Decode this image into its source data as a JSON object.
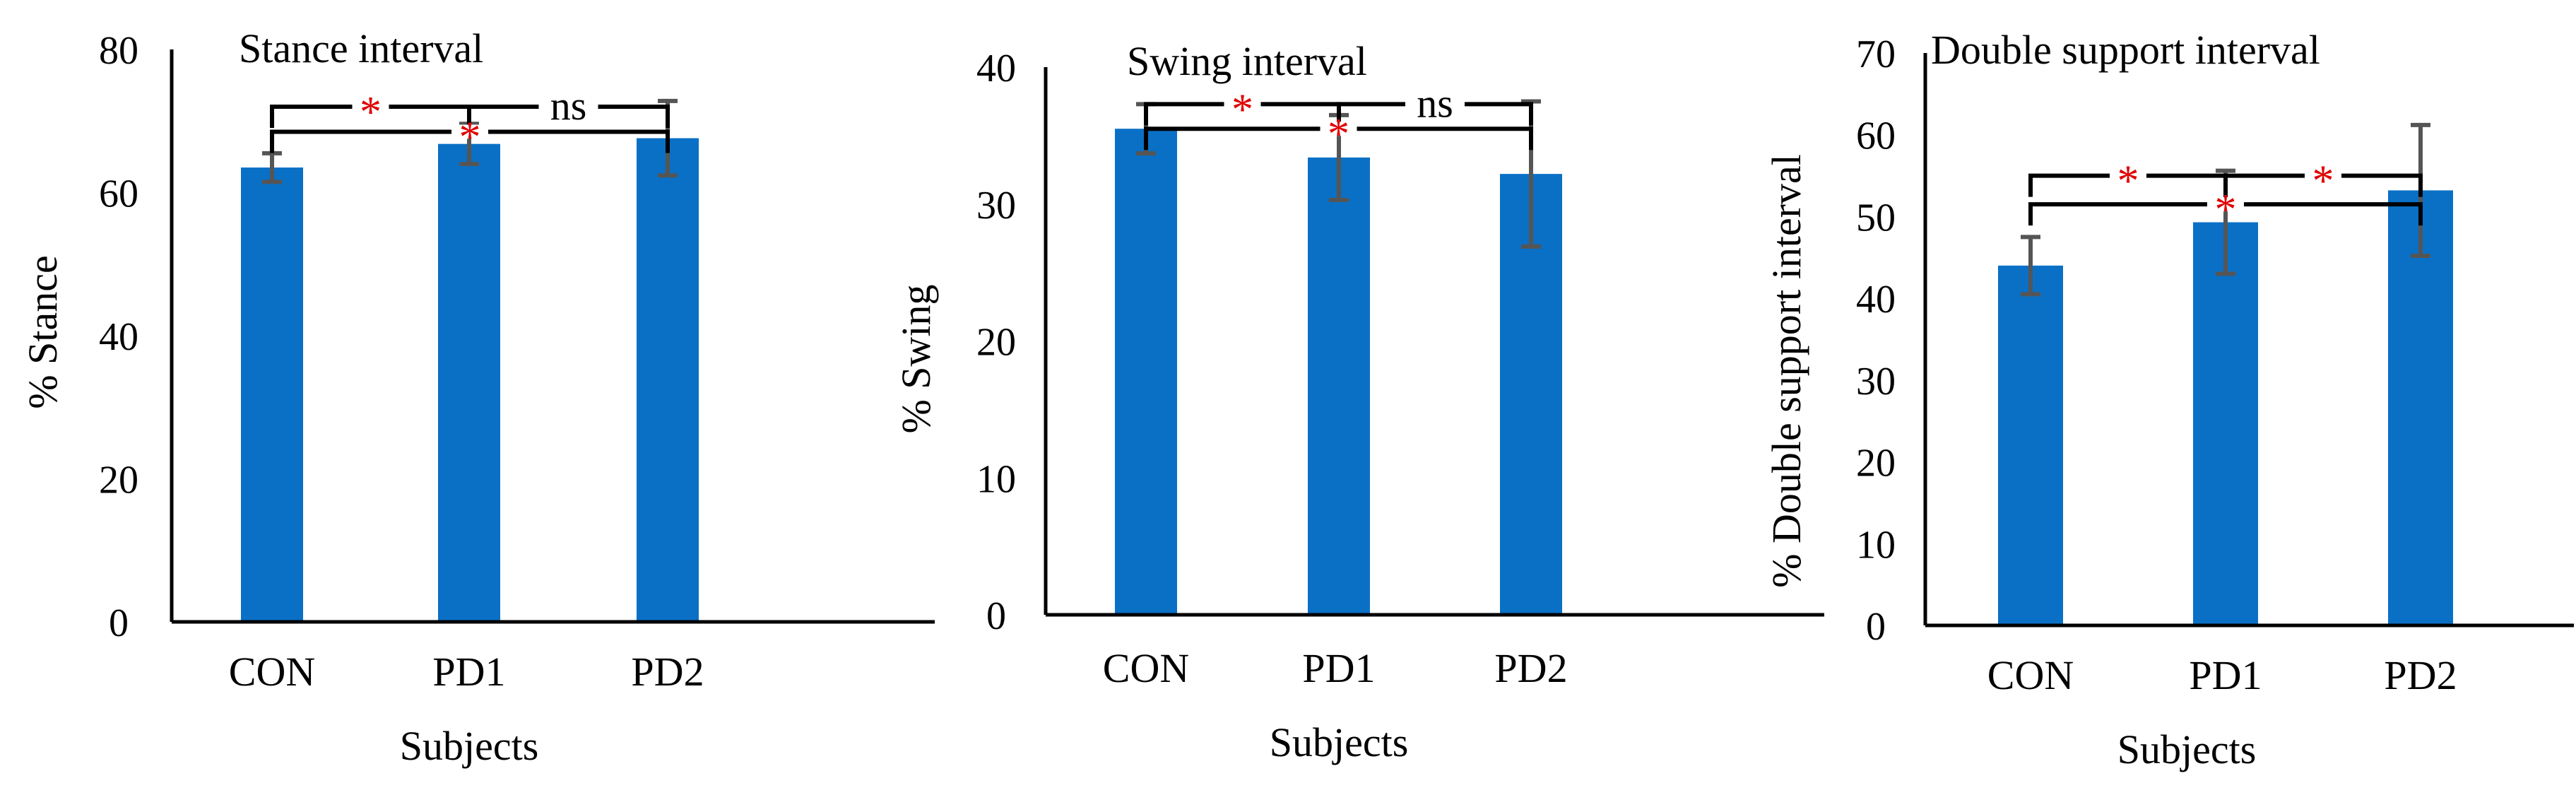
{
  "chart_data": [
    {
      "type": "bar",
      "title": "Stance interval",
      "xlabel": "Subjects",
      "ylabel": "% Stance",
      "categories": [
        "CON",
        "PD1",
        "PD2"
      ],
      "values": [
        63.5,
        66.8,
        67.6
      ],
      "errors": [
        2.0,
        2.8,
        5.2
      ],
      "ylim": [
        0,
        80
      ],
      "ticks": [
        0,
        20,
        40,
        60,
        80
      ],
      "annotations": [
        {
          "label": "*",
          "from": 0,
          "to": 1,
          "level": 72
        },
        {
          "label": "ns",
          "from": 1,
          "to": 2,
          "level": 72
        },
        {
          "label": "*",
          "from": 0,
          "to": 2,
          "level": 68.5
        }
      ]
    },
    {
      "type": "bar",
      "title": "Swing interval",
      "xlabel": "Subjects",
      "ylabel": "% Swing",
      "categories": [
        "CON",
        "PD1",
        "PD2"
      ],
      "values": [
        35.5,
        33.4,
        32.2
      ],
      "errors": [
        1.8,
        3.1,
        5.3
      ],
      "ylim": [
        0,
        40
      ],
      "ticks": [
        0,
        10,
        20,
        30,
        40
      ],
      "annotations": [
        {
          "label": "*",
          "from": 0,
          "to": 1,
          "level": 37.3
        },
        {
          "label": "ns",
          "from": 1,
          "to": 2,
          "level": 37.3
        },
        {
          "label": "*",
          "from": 0,
          "to": 2,
          "level": 35.5
        }
      ]
    },
    {
      "type": "bar",
      "title": "Double support interval",
      "xlabel": "Subjects",
      "ylabel": "% Double support interval",
      "categories": [
        "CON",
        "PD1",
        "PD2"
      ],
      "values": [
        44.0,
        49.3,
        53.2
      ],
      "errors": [
        3.5,
        6.3,
        8.0
      ],
      "ylim": [
        0,
        70
      ],
      "ticks": [
        0,
        10,
        20,
        30,
        40,
        50,
        60,
        70
      ],
      "annotations": [
        {
          "label": "*",
          "from": 0,
          "to": 1,
          "level": 55
        },
        {
          "label": "*",
          "from": 1,
          "to": 2,
          "level": 55
        },
        {
          "label": "*",
          "from": 0,
          "to": 2,
          "level": 51.5
        }
      ]
    }
  ],
  "colors": {
    "bar": "#0a70c6",
    "error_bar": "#555555",
    "star": "#e00000",
    "axis": "#000000"
  }
}
